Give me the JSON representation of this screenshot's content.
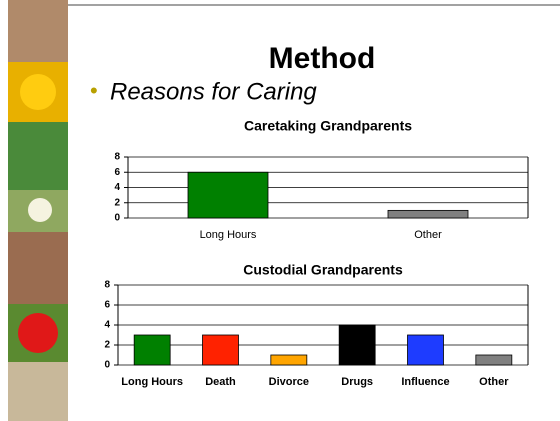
{
  "title": "Method",
  "bullet": "Reasons for Caring",
  "chart_data": [
    {
      "type": "bar",
      "title": "Caretaking Grandparents",
      "categories": [
        "Long Hours",
        "Other"
      ],
      "values": [
        6,
        1
      ],
      "colors": [
        "#008000",
        "#808080"
      ],
      "ylim": [
        0,
        8
      ],
      "yticks": [
        0,
        2,
        4,
        6,
        8
      ],
      "grid": true
    },
    {
      "type": "bar",
      "title": "Custodial Grandparents",
      "categories": [
        "Long Hours",
        "Death",
        "Divorce",
        "Drugs",
        "Influence",
        "Other"
      ],
      "values": [
        3,
        3,
        1,
        4,
        3,
        1
      ],
      "colors": [
        "#008000",
        "#ff2200",
        "#ffa500",
        "#000000",
        "#1e3cff",
        "#808080"
      ],
      "ylim": [
        0,
        8
      ],
      "yticks": [
        0,
        2,
        4,
        6,
        8
      ],
      "grid": true
    }
  ]
}
